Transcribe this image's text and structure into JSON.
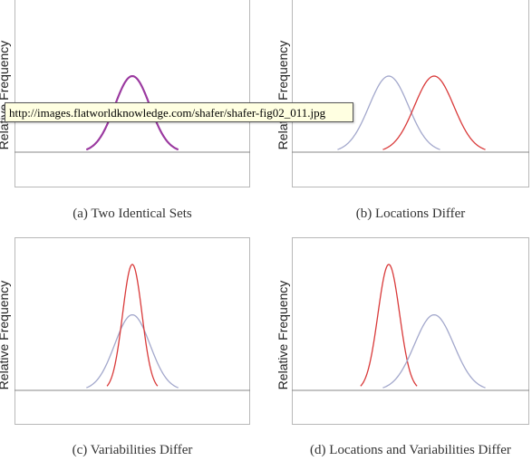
{
  "tooltip": {
    "text": "http://images.flatworldknowledge.com/shafer/shafer-fig02_011.jpg"
  },
  "chart_data": [
    {
      "type": "line",
      "caption": "(a) Two Identical Sets",
      "ylabel": "Relative Frequency",
      "xlim": [
        -4,
        4
      ],
      "ylim": [
        0,
        1.05
      ],
      "series": [
        {
          "color": "#9b3aa0",
          "mean": 0,
          "sd": 1
        },
        {
          "color": "#9b3aa0",
          "mean": 0,
          "sd": 1
        }
      ]
    },
    {
      "type": "line",
      "caption": "(b) Locations Differ",
      "ylabel": "Relative Frequency",
      "xlim": [
        -4,
        4
      ],
      "ylim": [
        0,
        1.05
      ],
      "series": [
        {
          "color": "#a3a8cc",
          "mean": -1.15,
          "sd": 1
        },
        {
          "color": "#d93a3a",
          "mean": 1.15,
          "sd": 1
        }
      ]
    },
    {
      "type": "line",
      "caption": "(c) Variabilities Differ",
      "ylabel": "Relative Frequency",
      "xlim": [
        -4,
        4
      ],
      "ylim": [
        0,
        1.05
      ],
      "series": [
        {
          "color": "#a3a8cc",
          "mean": 0,
          "sd": 1,
          "height": 0.6
        },
        {
          "color": "#d93a3a",
          "mean": 0,
          "sd": 0.55,
          "height": 1.0
        }
      ]
    },
    {
      "type": "line",
      "caption": "(d) Locations and Variabilities Differ",
      "ylabel": "Relative Frequency",
      "xlim": [
        -4,
        4
      ],
      "ylim": [
        0,
        1.05
      ],
      "series": [
        {
          "color": "#d93a3a",
          "mean": -1.15,
          "sd": 0.55,
          "height": 1.0
        },
        {
          "color": "#a3a8cc",
          "mean": 1.15,
          "sd": 1,
          "height": 0.6
        }
      ]
    }
  ]
}
